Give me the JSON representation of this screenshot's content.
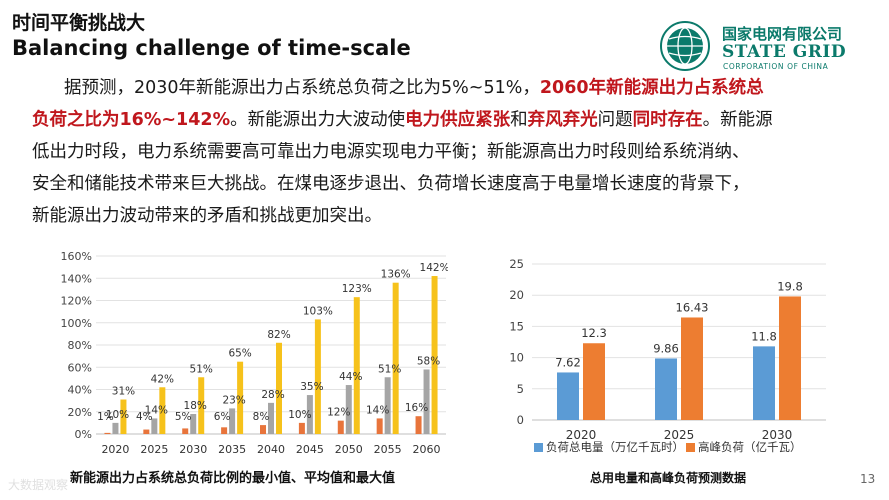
{
  "header": {
    "title_zh": "时间平衡挑战大",
    "title_en": "Balancing challenge of time-scale"
  },
  "logo": {
    "name_zh": "国家电网有限公司",
    "name_en": "STATE GRID",
    "subtitle": "CORPORATION OF CHINA"
  },
  "paragraph": {
    "l1a": "据预测，2030年新能源出力占系统总负荷之比为5%~51%，",
    "l1b": "2060年新能源出力占系统总",
    "l2a": "负荷之比为16%~142%",
    "l2b": "。新能源出力大波动使",
    "l2c": "电力供应紧张",
    "l2d": "和",
    "l2e": "弃风弃光",
    "l2f": "问题",
    "l2g": "同时存在",
    "l2h": "。新能源",
    "l3": "低出力时段，电力系统需要高可靠出力电源实现电力平衡；新能源高出力时段则给系统消纳、",
    "l4": "安全和储能技术带来巨大挑战。在煤电逐步退出、负荷增长速度高于电量增长速度的背景下，",
    "l5": "新能源出力波动带来的矛盾和挑战更加突出。"
  },
  "colors": {
    "red_emphasis": "#c0171d",
    "logo_green": "#0b7a6b",
    "min_series": "#e8743b",
    "avg_series": "#a5a5a5",
    "max_series": "#f6c21b",
    "energy_series": "#5b9bd5",
    "peak_series": "#ed7d31"
  },
  "chart_data": [
    {
      "type": "bar",
      "title": "新能源出力占系统总负荷比例的最小值、平均值和最大值",
      "categories": [
        "2020",
        "2025",
        "2030",
        "2035",
        "2040",
        "2045",
        "2050",
        "2055",
        "2060"
      ],
      "series": [
        {
          "values": [
            1,
            4,
            5,
            6,
            8,
            10,
            12,
            14,
            16
          ],
          "labels": [
            "1%",
            "4%",
            "5%",
            "6%",
            "8%",
            "10%",
            "12%",
            "14%",
            "16%"
          ]
        },
        {
          "values": [
            10,
            14,
            18,
            23,
            28,
            35,
            44,
            51,
            58
          ],
          "labels": [
            "10%",
            "14%",
            "18%",
            "23%",
            "28%",
            "35%",
            "44%",
            "51%",
            "58%"
          ]
        },
        {
          "values": [
            31,
            42,
            51,
            65,
            82,
            103,
            123,
            136,
            142
          ],
          "labels": [
            "31%",
            "42%",
            "51%",
            "65%",
            "82%",
            "103%",
            "123%",
            "136%",
            "142%"
          ]
        }
      ],
      "yticks": [
        "0%",
        "20%",
        "40%",
        "60%",
        "80%",
        "100%",
        "120%",
        "140%",
        "160%"
      ],
      "ylim": [
        0,
        160
      ],
      "grid": true,
      "legend": "none"
    },
    {
      "type": "bar",
      "title": "总用电量和高峰负荷预测数据",
      "categories": [
        "2020",
        "2025",
        "2030"
      ],
      "series": [
        {
          "name": "负荷总电量（万亿千瓦时）",
          "values": [
            7.62,
            9.86,
            11.8
          ],
          "labels": [
            "7.62",
            "9.86",
            "11.8"
          ]
        },
        {
          "name": "高峰负荷（亿千瓦）",
          "values": [
            12.3,
            16.43,
            19.8
          ],
          "labels": [
            "12.3",
            "16.43",
            "19.8"
          ]
        }
      ],
      "yticks": [
        "0",
        "5",
        "10",
        "15",
        "20",
        "25"
      ],
      "ylim": [
        0,
        25
      ],
      "grid": true,
      "legend": "bottom"
    }
  ],
  "page_number": "13",
  "watermark": "大数据观察"
}
